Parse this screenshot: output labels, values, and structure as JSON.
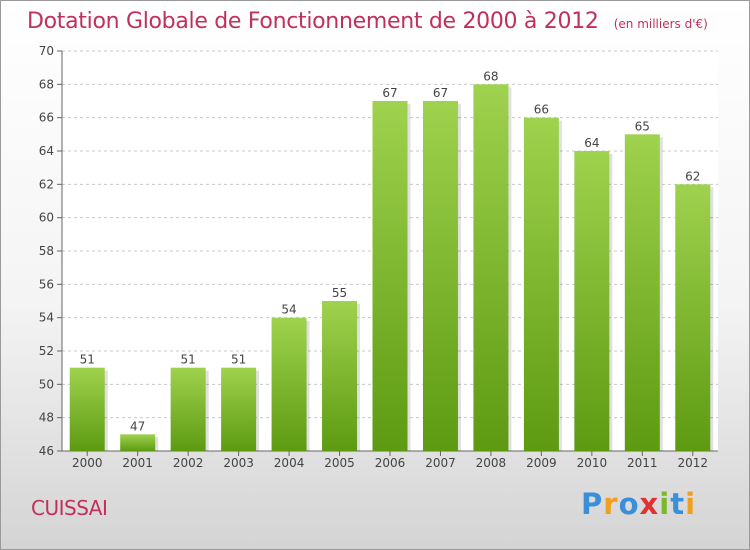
{
  "title": "Dotation Globale de Fonctionnement de 2000 à 2012",
  "unit": "(en milliers d'€)",
  "commune": "CUISSAI",
  "logo": {
    "text": "Proxiti",
    "letters": [
      {
        "ch": "P",
        "color": "#3a8fd8"
      },
      {
        "ch": "r",
        "color": "#f0a020"
      },
      {
        "ch": "o",
        "color": "#3a8fd8"
      },
      {
        "ch": "x",
        "color": "#e03030"
      },
      {
        "ch": "i",
        "color": "#7ab828"
      },
      {
        "ch": "t",
        "color": "#3a8fd8"
      },
      {
        "ch": "i",
        "color": "#f0a020"
      }
    ]
  },
  "colors": {
    "bar_top": "#9fd24e",
    "bar_bottom": "#5d9a12",
    "title": "#c0305a",
    "grid": "#c8c8c8"
  },
  "chart_data": {
    "type": "bar",
    "title": "Dotation Globale de Fonctionnement de 2000 à 2012",
    "categories": [
      "2000",
      "2001",
      "2002",
      "2003",
      "2004",
      "2005",
      "2006",
      "2007",
      "2008",
      "2009",
      "2010",
      "2011",
      "2012"
    ],
    "values": [
      51,
      47,
      51,
      51,
      54,
      55,
      67,
      67,
      68,
      66,
      64,
      65,
      62
    ],
    "ylim": [
      46,
      70
    ],
    "yticks": [
      46,
      48,
      50,
      52,
      54,
      56,
      58,
      60,
      62,
      64,
      66,
      68,
      70
    ],
    "grid": true,
    "xlabel": "",
    "ylabel": ""
  }
}
